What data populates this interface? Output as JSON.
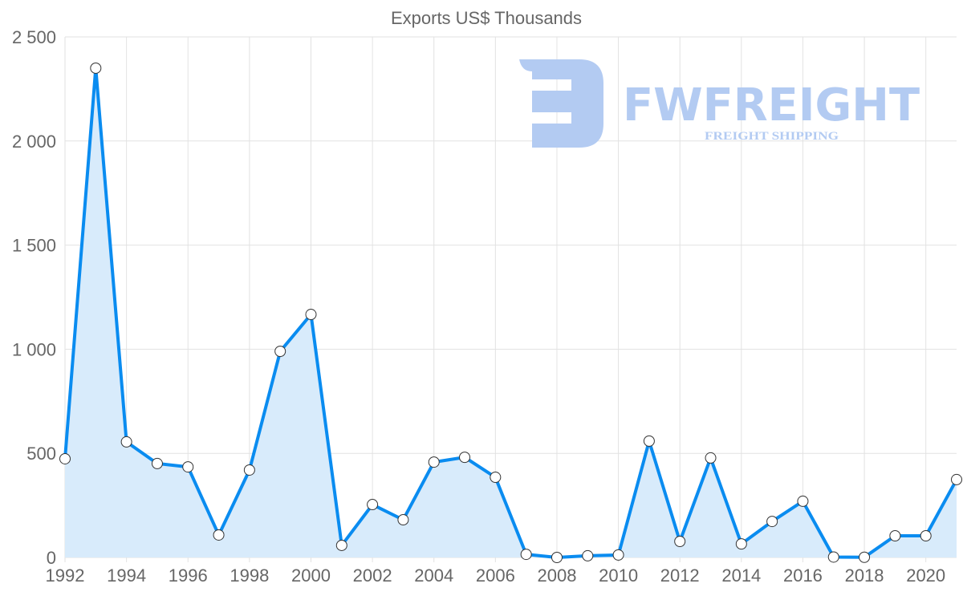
{
  "chart_data": {
    "type": "area",
    "title": "Exports US$ Thousands",
    "xlabel": "",
    "ylabel": "",
    "x": [
      1992,
      1993,
      1994,
      1995,
      1996,
      1997,
      1998,
      1999,
      2000,
      2001,
      2002,
      2003,
      2004,
      2005,
      2006,
      2007,
      2008,
      2009,
      2010,
      2011,
      2012,
      2013,
      2014,
      2015,
      2016,
      2017,
      2018,
      2019,
      2020,
      2021
    ],
    "values": [
      474,
      2350,
      555,
      451,
      435,
      108,
      420,
      990,
      1167,
      58,
      254,
      181,
      458,
      481,
      385,
      15,
      0,
      8,
      12,
      559,
      77,
      478,
      65,
      173,
      270,
      2,
      1,
      104,
      104,
      374
    ],
    "xlim": [
      1992,
      2021
    ],
    "ylim": [
      0,
      2500
    ],
    "x_ticks": [
      "1992",
      "1994",
      "1996",
      "1998",
      "2000",
      "2002",
      "2004",
      "2006",
      "2008",
      "2010",
      "2012",
      "2014",
      "2016",
      "2018",
      "2020"
    ],
    "y_ticks": [
      "0",
      "500",
      "1 000",
      "1 500",
      "2 000",
      "2 500"
    ],
    "grid": true,
    "colors": {
      "line": "#0a8cf0",
      "fill": "#d8ebfb",
      "grid": "#e2e2e2",
      "marker_fill": "#ffffff",
      "marker_stroke": "#333333"
    }
  },
  "watermark": {
    "brand": "FWFREIGHT",
    "tagline": "FREIGHT SHIPPING",
    "color": "#b3cbf2"
  }
}
